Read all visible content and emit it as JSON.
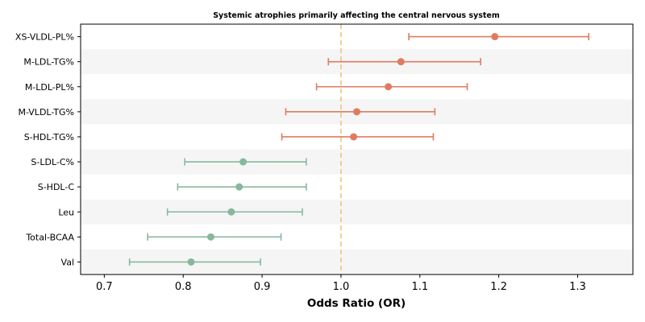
{
  "chart_data": {
    "type": "forest",
    "title": "Systemic atrophies primarily affecting the central nervous system",
    "xlabel": "Odds Ratio (OR)",
    "xlim": [
      0.67,
      1.37
    ],
    "xticks": [
      0.7,
      0.8,
      0.9,
      1.0,
      1.1,
      1.2,
      1.3
    ],
    "xtick_labels": [
      "0.7",
      "0.8",
      "0.9",
      "1.0",
      "1.1",
      "1.2",
      "1.3"
    ],
    "reference_line": 1.0,
    "grid": false,
    "colors": {
      "risk": "#e07b5f",
      "protective": "#86b89d",
      "reference": "#f2c17d",
      "band": "#f5f5f5"
    },
    "rows": [
      {
        "label": "XS-VLDL-PL%",
        "or": 1.195,
        "lower": 1.086,
        "upper": 1.314
      },
      {
        "label": "M-LDL-TG%",
        "or": 1.076,
        "lower": 0.984,
        "upper": 1.177
      },
      {
        "label": "M-LDL-PL%",
        "or": 1.06,
        "lower": 0.969,
        "upper": 1.16
      },
      {
        "label": "M-VLDL-TG%",
        "or": 1.02,
        "lower": 0.93,
        "upper": 1.119
      },
      {
        "label": "S-HDL-TG%",
        "or": 1.016,
        "lower": 0.925,
        "upper": 1.117
      },
      {
        "label": "S-LDL-C%",
        "or": 0.876,
        "lower": 0.802,
        "upper": 0.956
      },
      {
        "label": "S-HDL-C",
        "or": 0.871,
        "lower": 0.793,
        "upper": 0.956
      },
      {
        "label": "Leu",
        "or": 0.861,
        "lower": 0.78,
        "upper": 0.951
      },
      {
        "label": "Total-BCAA",
        "or": 0.835,
        "lower": 0.755,
        "upper": 0.924
      },
      {
        "label": "Val",
        "or": 0.81,
        "lower": 0.732,
        "upper": 0.898
      }
    ]
  }
}
